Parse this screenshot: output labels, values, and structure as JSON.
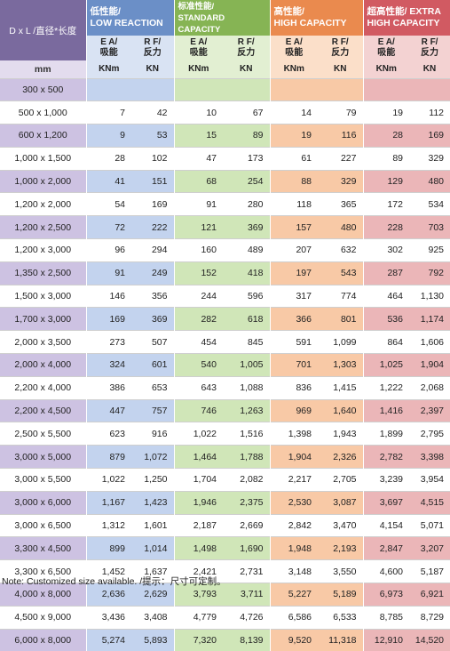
{
  "header": {
    "dl": "D x L /直径*长度",
    "mm": "mm",
    "groups": [
      {
        "line1": "低性能/",
        "line2": "LOW REACTION"
      },
      {
        "line1": "标准性能/",
        "line2": "STANDARD CAPACITY"
      },
      {
        "line1": "高性能/",
        "line2": "HIGH CAPACITY"
      },
      {
        "line1": "超高性能/ EXTRA",
        "line2": "HIGH CAPACITY"
      }
    ],
    "ea": {
      "line1": "E A/",
      "line2": "吸能"
    },
    "rf": {
      "line1": "R F/",
      "line2": "反力"
    },
    "ea_unit": "KNm",
    "rf_unit": "KN"
  },
  "rows": [
    {
      "size": "300 x 500",
      "v": [
        "",
        "",
        "",
        "",
        "",
        "",
        "",
        ""
      ]
    },
    {
      "size": "500 x 1,000",
      "v": [
        "7",
        "42",
        "10",
        "67",
        "14",
        "79",
        "19",
        "112"
      ]
    },
    {
      "size": "600 x 1,200",
      "v": [
        "9",
        "53",
        "15",
        "89",
        "19",
        "116",
        "28",
        "169"
      ]
    },
    {
      "size": "1,000 x 1,500",
      "v": [
        "28",
        "102",
        "47",
        "173",
        "61",
        "227",
        "89",
        "329"
      ]
    },
    {
      "size": "1,000 x 2,000",
      "v": [
        "41",
        "151",
        "68",
        "254",
        "88",
        "329",
        "129",
        "480"
      ]
    },
    {
      "size": "1,200 x 2,000",
      "v": [
        "54",
        "169",
        "91",
        "280",
        "118",
        "365",
        "172",
        "534"
      ]
    },
    {
      "size": "1,200 x 2,500",
      "v": [
        "72",
        "222",
        "121",
        "369",
        "157",
        "480",
        "228",
        "703"
      ]
    },
    {
      "size": "1,200 x 3,000",
      "v": [
        "96",
        "294",
        "160",
        "489",
        "207",
        "632",
        "302",
        "925"
      ]
    },
    {
      "size": "1,350 x 2,500",
      "v": [
        "91",
        "249",
        "152",
        "418",
        "197",
        "543",
        "287",
        "792"
      ]
    },
    {
      "size": "1,500 x 3,000",
      "v": [
        "146",
        "356",
        "244",
        "596",
        "317",
        "774",
        "464",
        "1,130"
      ]
    },
    {
      "size": "1,700 x 3,000",
      "v": [
        "169",
        "369",
        "282",
        "618",
        "366",
        "801",
        "536",
        "1,174"
      ]
    },
    {
      "size": "2,000 x 3,500",
      "v": [
        "273",
        "507",
        "454",
        "845",
        "591",
        "1,099",
        "864",
        "1,606"
      ]
    },
    {
      "size": "2,000 x 4,000",
      "v": [
        "324",
        "601",
        "540",
        "1,005",
        "701",
        "1,303",
        "1,025",
        "1,904"
      ]
    },
    {
      "size": "2,200 x 4,000",
      "v": [
        "386",
        "653",
        "643",
        "1,088",
        "836",
        "1,415",
        "1,222",
        "2,068"
      ]
    },
    {
      "size": "2,200 x 4,500",
      "v": [
        "447",
        "757",
        "746",
        "1,263",
        "969",
        "1,640",
        "1,416",
        "2,397"
      ]
    },
    {
      "size": "2,500 x 5,500",
      "v": [
        "623",
        "916",
        "1,022",
        "1,516",
        "1,398",
        "1,943",
        "1,899",
        "2,795"
      ]
    },
    {
      "size": "3,000 x 5,000",
      "v": [
        "879",
        "1,072",
        "1,464",
        "1,788",
        "1,904",
        "2,326",
        "2,782",
        "3,398"
      ]
    },
    {
      "size": "3,000 x 5,500",
      "v": [
        "1,022",
        "1,250",
        "1,704",
        "2,082",
        "2,217",
        "2,705",
        "3,239",
        "3,954"
      ]
    },
    {
      "size": "3,000 x 6,000",
      "v": [
        "1,167",
        "1,423",
        "1,946",
        "2,375",
        "2,530",
        "3,087",
        "3,697",
        "4,515"
      ]
    },
    {
      "size": "3,000 x 6,500",
      "v": [
        "1,312",
        "1,601",
        "2,187",
        "2,669",
        "2,842",
        "3,470",
        "4,154",
        "5,071"
      ]
    },
    {
      "size": "3,300 x 4,500",
      "v": [
        "899",
        "1,014",
        "1,498",
        "1,690",
        "1,948",
        "2,193",
        "2,847",
        "3,207"
      ]
    },
    {
      "size": "3,300 x 6,500",
      "v": [
        "1,452",
        "1,637",
        "2,421",
        "2,731",
        "3,148",
        "3,550",
        "4,600",
        "5,187"
      ]
    },
    {
      "size": "4,000 x 8,000",
      "v": [
        "2,636",
        "2,629",
        "3,793",
        "3,711",
        "5,227",
        "5,189",
        "6,973",
        "6,921"
      ]
    },
    {
      "size": "4,500 x 9,000",
      "v": [
        "3,436",
        "3,408",
        "4,779",
        "4,726",
        "6,586",
        "6,533",
        "8,785",
        "8,729"
      ]
    },
    {
      "size": "6,000 x 8,000",
      "v": [
        "5,274",
        "5,893",
        "7,320",
        "8,139",
        "9,520",
        "11,318",
        "12,910",
        "14,520"
      ]
    }
  ],
  "note": "Note: Customized size available. /提示：尺寸可定制。",
  "colors": {
    "low": "#6b8fc7",
    "standard": "#86b454",
    "high": "#ea8a4e",
    "extra": "#d15a62",
    "size_header": "#7a6a9e"
  }
}
